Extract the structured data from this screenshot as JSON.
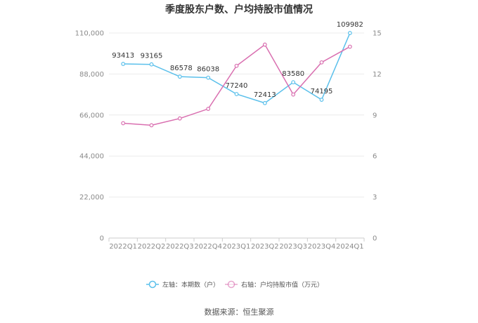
{
  "chart_data": {
    "type": "line",
    "title": "季度股东户数、户均持股市值情况",
    "categories": [
      "2022Q1",
      "2022Q2",
      "2022Q3",
      "2022Q4",
      "2023Q1",
      "2023Q2",
      "2023Q3",
      "2023Q4",
      "2024Q1"
    ],
    "y_left": {
      "ticks": [
        "0",
        "22,000",
        "44,000",
        "66,000",
        "88,000",
        "110,000"
      ],
      "ylim": [
        0,
        110000
      ]
    },
    "y_right": {
      "ticks": [
        "0",
        "3",
        "6",
        "9",
        "12",
        "15"
      ],
      "ylim": [
        0,
        15
      ]
    },
    "series": [
      {
        "name": "左轴：本期数（户）",
        "axis": "left",
        "color": "#5bc0eb",
        "values": [
          93413,
          93165,
          86578,
          86038,
          77240,
          72413,
          83580,
          74195,
          109982
        ],
        "labels": [
          "93413",
          "93165",
          "86578",
          "86038",
          "77240",
          "72413",
          "83580",
          "74195",
          "109982"
        ]
      },
      {
        "name": "右轴：户均持股市值（万元）",
        "axis": "right",
        "color": "#d96fb0",
        "values": [
          8.4,
          8.25,
          8.75,
          9.45,
          12.6,
          14.15,
          10.5,
          12.85,
          14.0
        ]
      }
    ],
    "grid": true,
    "legend_position": "bottom"
  },
  "source_text": "数据来源：恒生聚源"
}
